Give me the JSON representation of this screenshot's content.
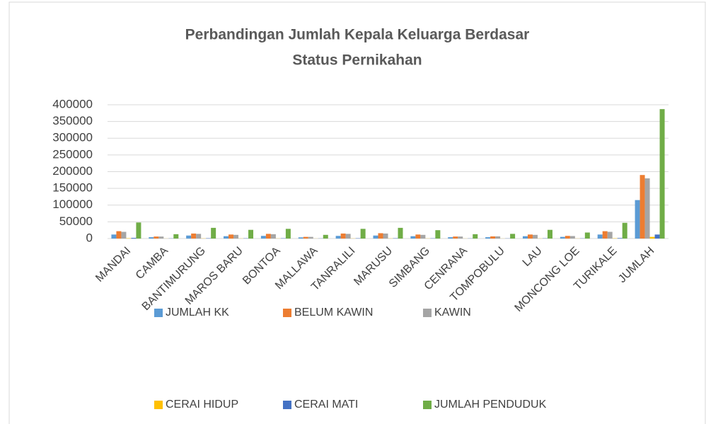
{
  "chart_data": {
    "type": "bar",
    "title": [
      "Perbandingan Jumlah Kepala Keluarga Berdasar",
      "Status Pernikahan"
    ],
    "categories": [
      "MANDAI",
      "CAMBA",
      "BANTIMURUNG",
      "MAROS BARU",
      "BONTOA",
      "MALLAWA",
      "TANRALILI",
      "MARUSU",
      "SIMBANG",
      "CENRANA",
      "TOMPOBULU",
      "LAU",
      "MONCONG LOE",
      "TURIKALE",
      "JUMLAH"
    ],
    "series": [
      {
        "name": "JUMLAH KK",
        "color": "#5b9bd5",
        "values": [
          12000,
          4000,
          9000,
          7000,
          8000,
          3500,
          8000,
          9000,
          7000,
          4000,
          4000,
          7000,
          5000,
          12000,
          115000
        ]
      },
      {
        "name": "BELUM KAWIN",
        "color": "#ed7d31",
        "values": [
          22000,
          6000,
          15000,
          12000,
          14000,
          5000,
          15000,
          16000,
          12000,
          6000,
          6500,
          12000,
          8000,
          22000,
          190000
        ]
      },
      {
        "name": "KAWIN",
        "color": "#a5a5a5",
        "values": [
          20000,
          6000,
          14000,
          11000,
          13000,
          5000,
          14000,
          15000,
          11000,
          6000,
          6500,
          11000,
          7500,
          20000,
          180000
        ]
      },
      {
        "name": "CERAI HIDUP",
        "color": "#ffc000",
        "values": [
          1000,
          200,
          500,
          400,
          400,
          200,
          400,
          500,
          400,
          200,
          200,
          400,
          300,
          800,
          5000
        ]
      },
      {
        "name": "CERAI MATI",
        "color": "#4472c4",
        "values": [
          2000,
          500,
          1000,
          800,
          900,
          400,
          900,
          1000,
          800,
          500,
          500,
          800,
          600,
          1500,
          12000
        ]
      },
      {
        "name": "JUMLAH PENDUDUK",
        "color": "#70ad47",
        "values": [
          48000,
          13000,
          32000,
          26000,
          29000,
          11000,
          29000,
          32000,
          25000,
          13000,
          14000,
          26000,
          18000,
          47000,
          387000
        ]
      }
    ],
    "ylim": [
      0,
      400000
    ],
    "yticks": [
      0,
      50000,
      100000,
      150000,
      200000,
      250000,
      300000,
      350000,
      400000
    ],
    "grid": true,
    "legend": "bottom"
  }
}
